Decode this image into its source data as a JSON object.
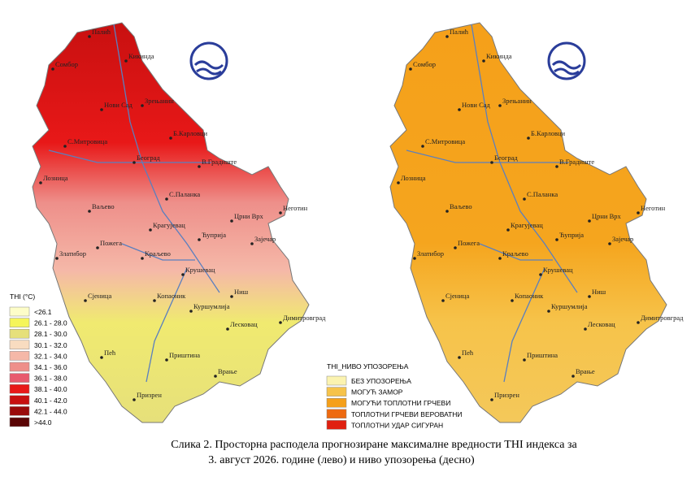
{
  "cities": [
    "Палић",
    "Кикинда",
    "Сомбор",
    "Нови Сад",
    "Зрењанин",
    "Б.Карловци",
    "С.Митровица",
    "Београд",
    "В.Градиште",
    "Лозница",
    "Ваљево",
    "С.Паланка",
    "Неготин",
    "Црни Врх",
    "Крагујевац",
    "Ћуприја",
    "Зајечар",
    "Пожега",
    "Златибор",
    "Краљево",
    "Крушевац",
    "Сјеница",
    "Копаоник",
    "Ниш",
    "Куршумлија",
    "Лесковац",
    "Димитровград",
    "Пећ",
    "Приштина",
    "Врање",
    "Призрен"
  ],
  "left_legend": {
    "title": "THI (°C)",
    "items": [
      {
        "label": "<26.1",
        "color": "#fdfdc8"
      },
      {
        "label": "26.1 - 28.0",
        "color": "#f5f55a"
      },
      {
        "label": "28.1 - 30.0",
        "color": "#e6e07a"
      },
      {
        "label": "30.1 - 32.0",
        "color": "#f8dcc0"
      },
      {
        "label": "32.1 - 34.0",
        "color": "#f5b8a8"
      },
      {
        "label": "34.1 - 36.0",
        "color": "#ee8f8a"
      },
      {
        "label": "36.1 - 38.0",
        "color": "#e85a6e"
      },
      {
        "label": "38.1 - 40.0",
        "color": "#e81818"
      },
      {
        "label": "40.1 - 42.0",
        "color": "#c81010"
      },
      {
        "label": "42.1 - 44.0",
        "color": "#9a0a0a"
      },
      {
        "label": ">44.0",
        "color": "#5a0505"
      }
    ]
  },
  "right_legend": {
    "title": "THI_НИВО УПОЗОРЕЊА",
    "items": [
      {
        "label": "БЕЗ УПОЗОРЕЊА",
        "color": "#fbf3b0"
      },
      {
        "label": "МОГУЋ ЗАМОР",
        "color": "#f6c34a"
      },
      {
        "label": "МОГУЋИ ТОПЛОТНИ ГРЧЕВИ",
        "color": "#f5a01a"
      },
      {
        "label": "ТОПЛОТНИ ГРЧЕВИ ВЕРОВАТНИ",
        "color": "#ee6a10"
      },
      {
        "label": "ТОПЛОТНИ УДАР СИГУРАН",
        "color": "#e02010"
      }
    ]
  },
  "caption": {
    "line1": "Слика 2. Просторна расподела прогнозиране максималне вредности THI индекса за",
    "line2": "3. август 2026. године (лево) и ниво упозорења (десно)"
  }
}
